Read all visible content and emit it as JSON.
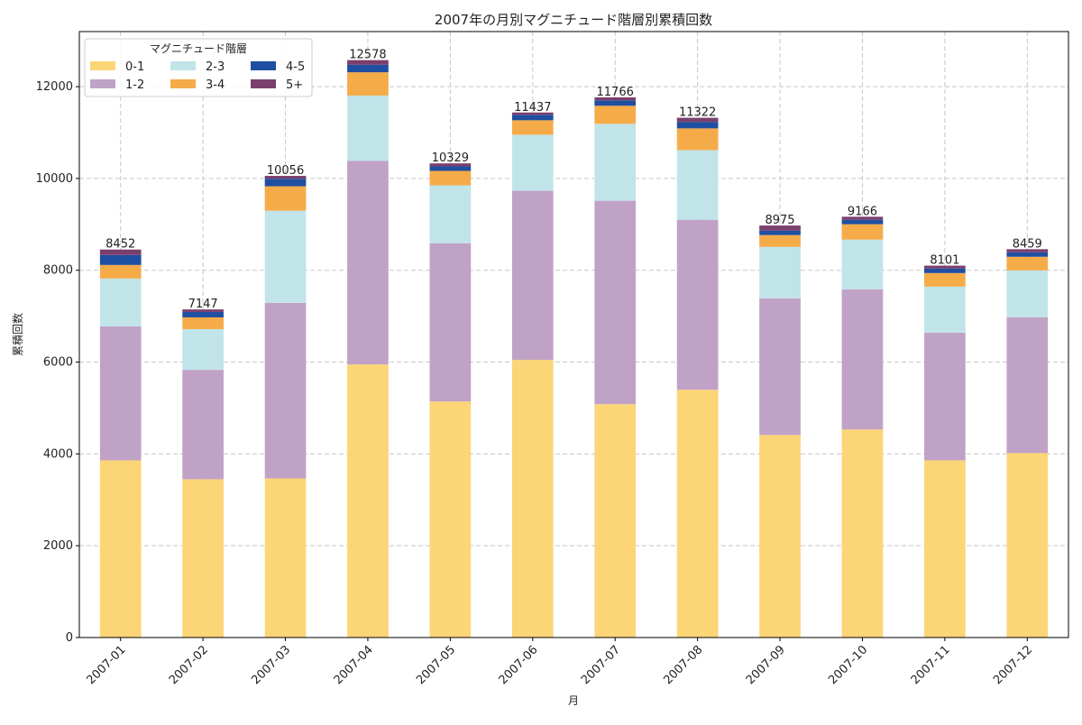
{
  "chart_data": {
    "type": "bar",
    "stacked": true,
    "title": "2007年の月別マグニチュード階層別累積回数",
    "xlabel": "月",
    "ylabel": "累積回数",
    "ylim": [
      0,
      13200
    ],
    "yticks": [
      0,
      2000,
      4000,
      6000,
      8000,
      10000,
      12000
    ],
    "grid": true,
    "legend": {
      "title": "マグニチュード階層",
      "placement": "top-left",
      "columns": 3
    },
    "categories": [
      "2007-01",
      "2007-02",
      "2007-03",
      "2007-04",
      "2007-05",
      "2007-06",
      "2007-07",
      "2007-08",
      "2007-09",
      "2007-10",
      "2007-11",
      "2007-12"
    ],
    "series": [
      {
        "name": "0-1",
        "color": "#fcd576",
        "values": [
          3860,
          3448,
          3467,
          5949,
          5142,
          6048,
          5083,
          5398,
          4413,
          4531,
          3861,
          4019
        ]
      },
      {
        "name": "1-2",
        "color": "#c0a2c7",
        "values": [
          2917,
          2383,
          3822,
          4433,
          3447,
          3684,
          4432,
          3703,
          2975,
          3054,
          2778,
          2955
        ]
      },
      {
        "name": "2-3",
        "color": "#c1e4e8",
        "values": [
          1044,
          887,
          2009,
          1424,
          1261,
          1221,
          1675,
          1517,
          1122,
          1083,
          1005,
          1024
        ]
      },
      {
        "name": "3-4",
        "color": "#f6ab49",
        "values": [
          295,
          256,
          532,
          507,
          315,
          315,
          394,
          473,
          257,
          335,
          295,
          296
        ]
      },
      {
        "name": "4-5",
        "color": "#1f4fa0",
        "values": [
          217,
          118,
          164,
          163,
          99,
          119,
          118,
          138,
          98,
          98,
          99,
          98
        ]
      },
      {
        "name": "5+",
        "color": "#7b3f6e",
        "values": [
          119,
          55,
          62,
          102,
          65,
          50,
          64,
          93,
          110,
          65,
          63,
          67
        ]
      }
    ],
    "totals": [
      8452,
      7147,
      10056,
      12578,
      10329,
      11437,
      11766,
      11322,
      8975,
      9166,
      8101,
      8459
    ]
  }
}
